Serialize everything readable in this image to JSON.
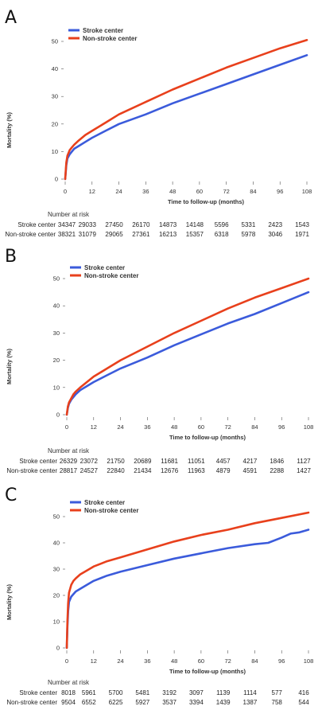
{
  "chart_data": [
    {
      "type": "line",
      "panel_label": "A",
      "xlabel": "Time to follow-up (months)",
      "ylabel": "Mortality (%)",
      "xlim": [
        0,
        108
      ],
      "ylim": [
        0,
        50
      ],
      "x_ticks": [
        0,
        12,
        24,
        36,
        48,
        60,
        72,
        84,
        96,
        108
      ],
      "y_ticks": [
        0,
        10,
        20,
        30,
        40,
        50
      ],
      "grid": false,
      "legend_position": "top-left",
      "series": [
        {
          "name": "Stroke center",
          "color": "#3b5bdb",
          "x": [
            0,
            0.5,
            1,
            2,
            3,
            4,
            6,
            9,
            12,
            18,
            24,
            36,
            48,
            60,
            72,
            84,
            96,
            108
          ],
          "y": [
            0,
            5,
            7.5,
            9,
            10,
            11,
            12,
            13.5,
            15,
            17.5,
            20,
            23.5,
            27.5,
            31,
            34.5,
            38,
            41.5,
            45
          ]
        },
        {
          "name": "Non-stroke center",
          "color": "#e8401c",
          "x": [
            0,
            0.5,
            1,
            2,
            3,
            4,
            6,
            9,
            12,
            18,
            24,
            36,
            48,
            60,
            72,
            84,
            96,
            108
          ],
          "y": [
            0,
            6,
            8.5,
            10.5,
            11.5,
            12.5,
            14,
            16,
            17.5,
            20.5,
            23.5,
            28,
            32.5,
            36.5,
            40.5,
            44,
            47.5,
            50.5
          ]
        }
      ],
      "risk_table": {
        "title": "Number at risk",
        "rows": [
          {
            "label": "Stroke center",
            "values": [
              "34347",
              "29033",
              "27450",
              "26170",
              "14873",
              "14148",
              "5596",
              "5331",
              "2423",
              "1543"
            ]
          },
          {
            "label": "Non-stroke center",
            "values": [
              "38321",
              "31079",
              "29065",
              "27361",
              "16213",
              "15357",
              "6318",
              "5978",
              "3046",
              "1971"
            ]
          }
        ]
      }
    },
    {
      "type": "line",
      "panel_label": "B",
      "xlabel": "Time to follow-up (months)",
      "ylabel": "Mortality (%)",
      "xlim": [
        0,
        108
      ],
      "ylim": [
        0,
        50
      ],
      "x_ticks": [
        0,
        12,
        24,
        36,
        48,
        60,
        72,
        84,
        96,
        108
      ],
      "y_ticks": [
        0,
        10,
        20,
        30,
        40,
        50
      ],
      "grid": false,
      "legend_position": "top-left",
      "series": [
        {
          "name": "Stroke center",
          "color": "#3b5bdb",
          "x": [
            0,
            0.5,
            1,
            2,
            3,
            4,
            6,
            9,
            12,
            18,
            24,
            36,
            48,
            60,
            72,
            84,
            96,
            108
          ],
          "y": [
            0,
            2.5,
            4,
            5.5,
            6.5,
            7.5,
            9,
            10.5,
            12,
            14.5,
            17,
            21,
            25.5,
            29.5,
            33.5,
            37,
            41,
            45
          ]
        },
        {
          "name": "Non-stroke center",
          "color": "#e8401c",
          "x": [
            0,
            0.5,
            1,
            2,
            3,
            4,
            6,
            9,
            12,
            18,
            24,
            36,
            48,
            60,
            72,
            84,
            96,
            108
          ],
          "y": [
            0,
            3,
            4.5,
            6,
            7.5,
            8.5,
            10,
            12,
            14,
            17,
            20,
            25,
            30,
            34.5,
            39,
            43,
            46.5,
            50
          ]
        }
      ],
      "risk_table": {
        "title": "Number at risk",
        "rows": [
          {
            "label": "Stroke center",
            "values": [
              "26329",
              "23072",
              "21750",
              "20689",
              "11681",
              "11051",
              "4457",
              "4217",
              "1846",
              "1127"
            ]
          },
          {
            "label": "Non-stroke center",
            "values": [
              "28817",
              "24527",
              "22840",
              "21434",
              "12676",
              "11963",
              "4879",
              "4591",
              "2288",
              "1427"
            ]
          }
        ]
      }
    },
    {
      "type": "line",
      "panel_label": "C",
      "xlabel": "Time to follow-up (months)",
      "ylabel": "Mortality (%)",
      "xlim": [
        0,
        108
      ],
      "ylim": [
        0,
        50
      ],
      "x_ticks": [
        0,
        12,
        24,
        36,
        48,
        60,
        72,
        84,
        96,
        108
      ],
      "y_ticks": [
        0,
        10,
        20,
        30,
        40,
        50
      ],
      "grid": false,
      "legend_position": "top-left",
      "series": [
        {
          "name": "Stroke center",
          "color": "#3b5bdb",
          "x": [
            0,
            0.3,
            0.6,
            1,
            2,
            3,
            4,
            6,
            9,
            12,
            18,
            24,
            36,
            48,
            60,
            72,
            84,
            90,
            96,
            100,
            104,
            108
          ],
          "y": [
            0,
            8,
            14,
            17.5,
            19.5,
            20.5,
            21.5,
            22.5,
            24,
            25.5,
            27.5,
            29,
            31.5,
            34,
            36,
            38,
            39.5,
            40,
            42,
            43.5,
            44,
            45
          ]
        },
        {
          "name": "Non-stroke center",
          "color": "#e8401c",
          "x": [
            0,
            0.3,
            0.6,
            1,
            2,
            3,
            4,
            6,
            9,
            12,
            18,
            24,
            36,
            48,
            60,
            72,
            84,
            96,
            108
          ],
          "y": [
            0,
            10,
            17,
            21,
            24,
            25.5,
            26.5,
            28,
            29.5,
            31,
            33,
            34.5,
            37.5,
            40.5,
            43,
            45,
            47.5,
            49.5,
            51.5
          ]
        }
      ],
      "risk_table": {
        "title": "Number at risk",
        "rows": [
          {
            "label": "Stroke center",
            "values": [
              "8018",
              "5961",
              "5700",
              "5481",
              "3192",
              "3097",
              "1139",
              "1114",
              "577",
              "416"
            ]
          },
          {
            "label": "Non-stroke center",
            "values": [
              "9504",
              "6552",
              "6225",
              "5927",
              "3537",
              "3394",
              "1439",
              "1387",
              "758",
              "544"
            ]
          }
        ]
      }
    }
  ]
}
